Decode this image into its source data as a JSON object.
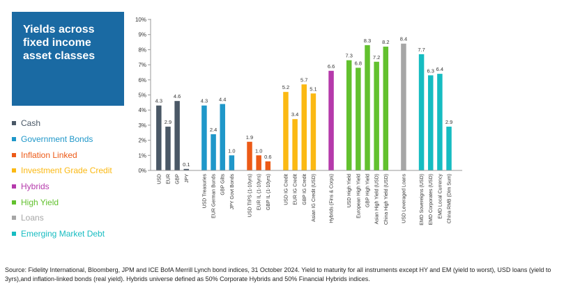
{
  "title": "Yields across fixed income asset classes",
  "source": "Source: Fidelity International, Bloomberg, JPM and ICE BofA Merrill Lynch bond indices, 31 October 2024. Yield to maturity for all instruments except HY and EM (yield to worst), USD loans (yield to 3yrs),and inflation-linked bonds (real yield). Hybrids universe defined as 50% Corporate Hybrids and 50% Financial Hybrids indices.",
  "colors": {
    "title_bg": "#1a6aa3",
    "Cash": "#4a5866",
    "Government Bonds": "#1f97c9",
    "Inflation Linked": "#ec5a17",
    "Investment Grade Credit": "#fbb913",
    "Hybrids": "#b53aab",
    "High Yield": "#62c12e",
    "Loans": "#a6a6a6",
    "Emerging Market Debt": "#16bcc1"
  },
  "chart_data": {
    "type": "bar",
    "ylim": [
      0,
      10
    ],
    "y_ticks": [
      "0%",
      "1%",
      "2%",
      "3%",
      "4%",
      "5%",
      "6%",
      "7%",
      "8%",
      "9%",
      "10%"
    ],
    "legend_position": "left",
    "grid": false,
    "groups": [
      {
        "name": "Cash",
        "items": [
          {
            "label": "USD",
            "value": 4.3
          },
          {
            "label": "EUR",
            "value": 2.9
          },
          {
            "label": "GBP",
            "value": 4.6
          },
          {
            "label": "JPY",
            "value": 0.1
          }
        ]
      },
      {
        "name": "Government Bonds",
        "items": [
          {
            "label": "USD Treasuries",
            "value": 4.3
          },
          {
            "label": "EUR German Bunds",
            "value": 2.4
          },
          {
            "label": "GBP Gilts",
            "value": 4.4
          },
          {
            "label": "JPY Govt Bonds",
            "value": 1.0
          }
        ]
      },
      {
        "name": "Inflation Linked",
        "items": [
          {
            "label": "USD TIPS (1-10yrs)",
            "value": 1.9
          },
          {
            "label": "EUR IL (1-10yrs)",
            "value": 1.0
          },
          {
            "label": "GBP IL (1-10yrs)",
            "value": 0.6
          }
        ]
      },
      {
        "name": "Investment Grade Credit",
        "items": [
          {
            "label": "USD IG Credit",
            "value": 5.2
          },
          {
            "label": "EUR IG Credit",
            "value": 3.4
          },
          {
            "label": "GBP IG Credit",
            "value": 5.7
          },
          {
            "label": "Asian IG Credit (USD)",
            "value": 5.1
          }
        ]
      },
      {
        "name": "Hybrids",
        "items": [
          {
            "label": "Hybrids (Fins & Corps)",
            "value": 6.6
          }
        ]
      },
      {
        "name": "High Yield",
        "items": [
          {
            "label": "USD High Yield",
            "value": 7.3
          },
          {
            "label": "European High Yield",
            "value": 6.8
          },
          {
            "label": "GBP High Yield",
            "value": 8.3
          },
          {
            "label": "Asian High Yield (USD)",
            "value": 7.2
          },
          {
            "label": "China High Yield (USD)",
            "value": 8.2
          }
        ]
      },
      {
        "name": "Loans",
        "items": [
          {
            "label": "USD Leveraged Loans",
            "value": 8.4
          }
        ]
      },
      {
        "name": "Emerging Market Debt",
        "items": [
          {
            "label": "EMD Sovereigns (USD)",
            "value": 7.7
          },
          {
            "label": "EMD Corporates (USD)",
            "value": 6.3
          },
          {
            "label": "EMD Local Currency",
            "value": 6.4
          },
          {
            "label": "China RMB (Dim Sum)",
            "value": 2.9
          }
        ]
      }
    ]
  }
}
